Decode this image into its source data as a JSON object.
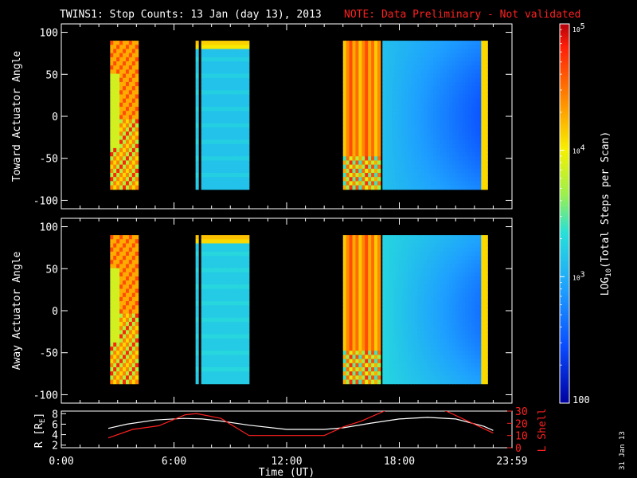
{
  "header": {
    "title": "TWINS1: Stop Counts: 13 Jan (day  13), 2013",
    "note": "NOTE: Data Preliminary - Not validated",
    "note_color": "#ff2020"
  },
  "stamp": "31 Jan 13",
  "colorbar": {
    "label": "LOG10(Total Steps per Scan)",
    "label_prefix": "LOG",
    "label_sub": "10",
    "label_suffix": "(Total Steps per Scan)",
    "ticks": [
      {
        "base": "10",
        "exp": "5",
        "value": 100000
      },
      {
        "base": "10",
        "exp": "4",
        "value": 10000
      },
      {
        "base": "10",
        "exp": "3",
        "value": 1000
      },
      {
        "text": "100",
        "value": 100
      }
    ],
    "range": [
      100,
      100000
    ],
    "scale": "log"
  },
  "chart_data": [
    {
      "type": "heatmap",
      "ylabel": "Toward Actuator Angle",
      "ylim": [
        -110,
        110
      ],
      "yticks": [
        "100",
        "50",
        "0",
        "-50",
        "-100"
      ],
      "ytick_values": [
        100,
        50,
        0,
        -50,
        -100
      ],
      "x_hours_range": [
        0,
        24
      ],
      "y_data_range": [
        -87,
        90
      ],
      "blocks": [
        {
          "start_h": 2.6,
          "end_h": 4.1,
          "level": 0.8,
          "pattern": "checker"
        },
        {
          "start_h": 7.15,
          "end_h": 7.3,
          "level": 0.4,
          "pattern": "flat"
        },
        {
          "start_h": 7.45,
          "end_h": 10.0,
          "level": 0.38,
          "pattern": "flat"
        },
        {
          "start_h": 15.0,
          "end_h": 17.0,
          "level": 0.8,
          "pattern": "stripes"
        },
        {
          "start_h": 17.1,
          "end_h": 22.7,
          "level": 0.25,
          "pattern": "fade"
        }
      ]
    },
    {
      "type": "heatmap",
      "ylabel": "Away Actuator Angle",
      "ylim": [
        -110,
        110
      ],
      "yticks": [
        "100",
        "50",
        "0",
        "-50",
        "-100"
      ],
      "ytick_values": [
        100,
        50,
        0,
        -50,
        -100
      ],
      "x_hours_range": [
        0,
        24
      ],
      "y_data_range": [
        -87,
        90
      ],
      "blocks": [
        {
          "start_h": 2.6,
          "end_h": 4.1,
          "level": 0.8,
          "pattern": "checker"
        },
        {
          "start_h": 7.15,
          "end_h": 7.3,
          "level": 0.4,
          "pattern": "flat"
        },
        {
          "start_h": 7.45,
          "end_h": 10.0,
          "level": 0.4,
          "pattern": "flat"
        },
        {
          "start_h": 15.0,
          "end_h": 17.0,
          "level": 0.8,
          "pattern": "stripes"
        },
        {
          "start_h": 17.1,
          "end_h": 22.7,
          "level": 0.3,
          "pattern": "fade"
        }
      ]
    },
    {
      "type": "line",
      "xlabel": "Time (UT)",
      "xticks": [
        "0:00",
        "6:00",
        "12:00",
        "18:00",
        "23:59"
      ],
      "xtick_hours": [
        0,
        6,
        12,
        18,
        24
      ],
      "ylabel_left": "R [RE]",
      "ylabel_left_prefix": "R [R",
      "ylabel_left_sub": "E",
      "ylabel_left_suffix": "]",
      "ylim_left": [
        1.5,
        8.5
      ],
      "yticks_left": [
        "8",
        "6",
        "4",
        "2"
      ],
      "ytick_values_left": [
        8,
        6,
        4,
        2
      ],
      "ylabel_right": "L Shell",
      "ylim_right": [
        0,
        30
      ],
      "yticks_right": [
        "30",
        "20",
        "10",
        "0"
      ],
      "ytick_values_right": [
        30,
        20,
        10,
        0
      ],
      "series": [
        {
          "axis": "left",
          "color": "#ffffff",
          "x": [
            2.5,
            3.5,
            5,
            6.5,
            7.5,
            8.5,
            10,
            12,
            14,
            15,
            16.5,
            18,
            19.5,
            21,
            22.5,
            23
          ],
          "y": [
            5.2,
            6.0,
            6.8,
            7.1,
            7.0,
            6.6,
            5.8,
            5.0,
            5.0,
            5.3,
            6.2,
            7.0,
            7.3,
            7.0,
            5.6,
            4.8
          ]
        },
        {
          "axis": "right",
          "color": "#ff2020",
          "x": [
            2.5,
            3.8,
            5.2,
            6.6,
            7.2,
            8.5,
            10.0,
            12.0,
            14.0,
            15.0,
            16.0,
            17.2,
            17.5,
            20.0,
            20.5,
            23.0
          ],
          "y": [
            8,
            15,
            18,
            27,
            28,
            24,
            10,
            10,
            10,
            17,
            22,
            30,
            32,
            32,
            30,
            12
          ]
        }
      ]
    }
  ]
}
